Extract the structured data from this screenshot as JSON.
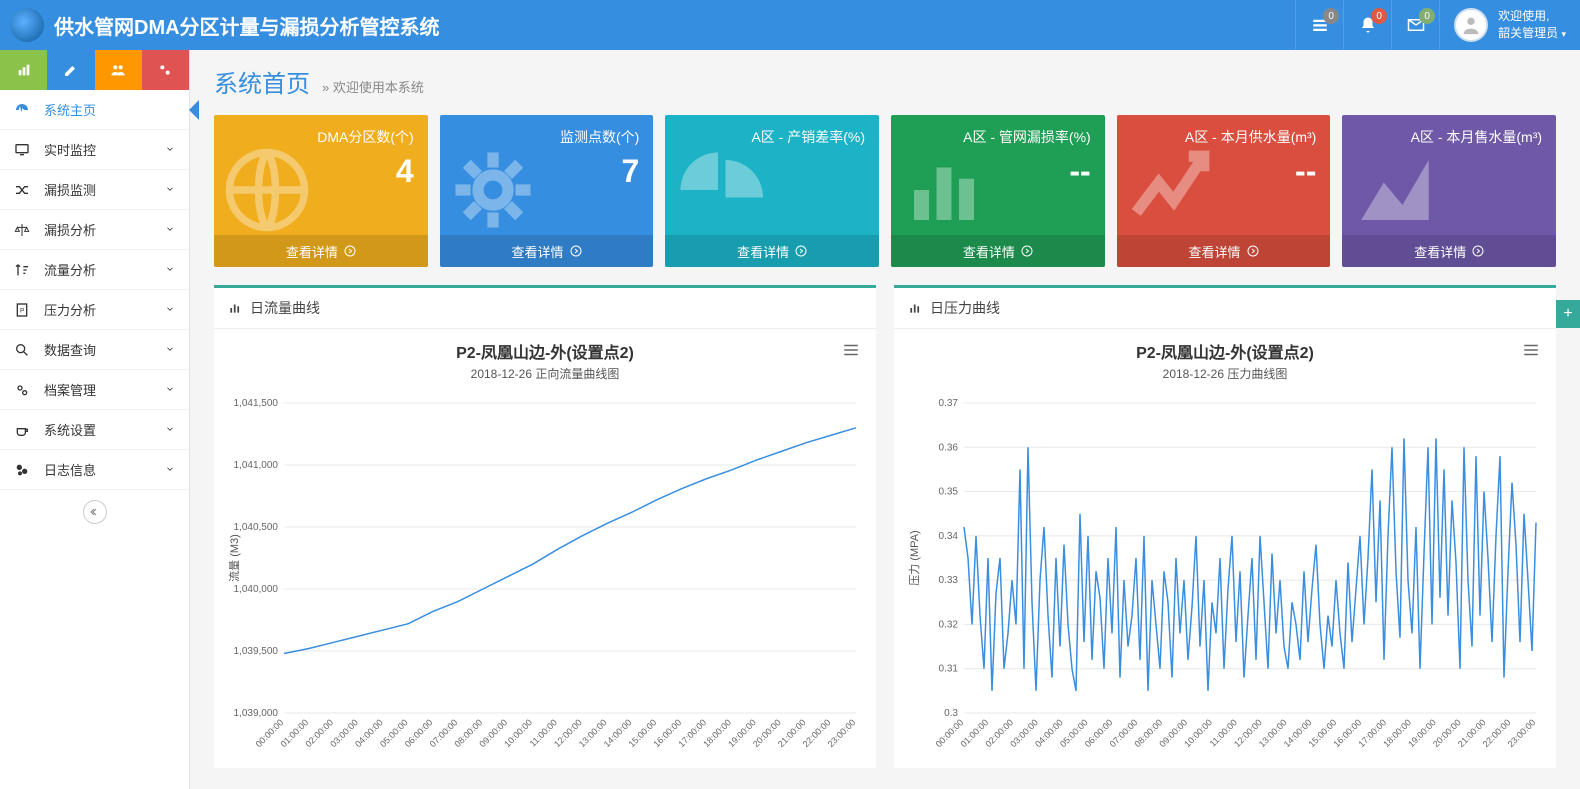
{
  "header": {
    "app_title": "供水管网DMA分区计量与漏损分析管控系统",
    "badges": {
      "list": "0",
      "bell": "0",
      "mail": "0"
    },
    "welcome_line1": "欢迎使用,",
    "welcome_line2": "韶关管理员"
  },
  "sidebar": {
    "items": [
      {
        "label": "系统主页",
        "icon": "dashboard",
        "active": true,
        "expandable": false
      },
      {
        "label": "实时监控",
        "icon": "monitor",
        "active": false,
        "expandable": true
      },
      {
        "label": "漏损监测",
        "icon": "shuffle",
        "active": false,
        "expandable": true
      },
      {
        "label": "漏损分析",
        "icon": "scale",
        "active": false,
        "expandable": true
      },
      {
        "label": "流量分析",
        "icon": "sort",
        "active": false,
        "expandable": true
      },
      {
        "label": "压力分析",
        "icon": "page",
        "active": false,
        "expandable": true
      },
      {
        "label": "数据查询",
        "icon": "search",
        "active": false,
        "expandable": true
      },
      {
        "label": "档案管理",
        "icon": "gears",
        "active": false,
        "expandable": true
      },
      {
        "label": "系统设置",
        "icon": "coffee",
        "active": false,
        "expandable": true
      },
      {
        "label": "日志信息",
        "icon": "log",
        "active": false,
        "expandable": true
      }
    ]
  },
  "page": {
    "title": "系统首页",
    "breadcrumb": "» 欢迎使用本系统"
  },
  "kpis": [
    {
      "label": "DMA分区数(个)",
      "value": "4",
      "color": "#f0ad1e",
      "icon": "globe"
    },
    {
      "label": "监测点数(个)",
      "value": "7",
      "color": "#368ee0",
      "icon": "gear"
    },
    {
      "label": "A区 - 产销差率(%)",
      "value": "",
      "color": "#1bb3c5",
      "icon": "pie"
    },
    {
      "label": "A区 - 管网漏损率(%)",
      "value": "--",
      "color": "#1f9e55",
      "icon": "bars"
    },
    {
      "label": "A区 - 本月供水量(m³)",
      "value": "--",
      "color": "#d94e3e",
      "icon": "trend"
    },
    {
      "label": "A区 - 本月售水量(m³)",
      "value": "",
      "color": "#6f58a8",
      "icon": "area"
    }
  ],
  "kpi_footer_label": "查看详情",
  "charts": {
    "flow": {
      "panel_label": "日流量曲线",
      "title": "P2-凤凰山边-外(设置点2)",
      "subtitle": "2018-12-26 正向流量曲线图",
      "y_label": "流量 (M3)",
      "ylim": [
        1039000,
        1041500
      ],
      "ytick_step": 500,
      "yticks_text": [
        "1,039,000",
        "1,039,500",
        "1,040,000",
        "1,040,500",
        "1,041,000",
        "1,041,500"
      ],
      "xticks": [
        "00:00:00",
        "01:00:00",
        "02:00:00",
        "03:00:00",
        "04:00:00",
        "05:00:00",
        "06:00:00",
        "07:00:00",
        "08:00:00",
        "09:00:00",
        "10:00:00",
        "11:00:00",
        "12:00:00",
        "13:00:00",
        "14:00:00",
        "15:00:00",
        "16:00:00",
        "17:00:00",
        "18:00:00",
        "19:00:00",
        "20:00:00",
        "21:00:00",
        "22:00:00",
        "23:00:00"
      ],
      "values": [
        1039480,
        1039520,
        1039570,
        1039620,
        1039670,
        1039720,
        1039820,
        1039900,
        1040000,
        1040100,
        1040200,
        1040320,
        1040430,
        1040530,
        1040620,
        1040720,
        1040810,
        1040890,
        1040960,
        1041040,
        1041110,
        1041180,
        1041240,
        1041300
      ],
      "line_color": "#3a8ee0",
      "grid_color": "#e8e8e8",
      "bg_color": "#ffffff"
    },
    "pressure": {
      "panel_label": "日压力曲线",
      "title": "P2-凤凰山边-外(设置点2)",
      "subtitle": "2018-12-26 压力曲线图",
      "y_label": "压力 (MPA)",
      "ylim": [
        0.3,
        0.37
      ],
      "ytick_step": 0.01,
      "yticks_text": [
        "0.3",
        "0.31",
        "0.32",
        "0.33",
        "0.34",
        "0.35",
        "0.36",
        "0.37"
      ],
      "xticks": [
        "00:00:00",
        "01:00:00",
        "02:00:00",
        "03:00:00",
        "04:00:00",
        "05:00:00",
        "06:00:00",
        "07:00:00",
        "08:00:00",
        "09:00:00",
        "10:00:00",
        "11:00:00",
        "12:00:00",
        "13:00:00",
        "14:00:00",
        "15:00:00",
        "16:00:00",
        "17:00:00",
        "18:00:00",
        "19:00:00",
        "20:00:00",
        "21:00:00",
        "22:00:00",
        "23:00:00"
      ],
      "values": [
        0.342,
        0.335,
        0.32,
        0.34,
        0.322,
        0.31,
        0.335,
        0.305,
        0.327,
        0.335,
        0.31,
        0.318,
        0.33,
        0.32,
        0.355,
        0.31,
        0.36,
        0.325,
        0.305,
        0.33,
        0.342,
        0.322,
        0.308,
        0.335,
        0.315,
        0.338,
        0.32,
        0.31,
        0.305,
        0.345,
        0.316,
        0.34,
        0.312,
        0.332,
        0.326,
        0.31,
        0.335,
        0.318,
        0.342,
        0.308,
        0.33,
        0.315,
        0.322,
        0.335,
        0.312,
        0.34,
        0.305,
        0.33,
        0.32,
        0.31,
        0.332,
        0.325,
        0.308,
        0.335,
        0.318,
        0.33,
        0.312,
        0.324,
        0.34,
        0.315,
        0.33,
        0.305,
        0.325,
        0.318,
        0.335,
        0.31,
        0.328,
        0.34,
        0.316,
        0.332,
        0.308,
        0.322,
        0.335,
        0.312,
        0.34,
        0.325,
        0.31,
        0.336,
        0.318,
        0.33,
        0.315,
        0.31,
        0.325,
        0.32,
        0.312,
        0.332,
        0.316,
        0.328,
        0.338,
        0.32,
        0.31,
        0.322,
        0.315,
        0.33,
        0.318,
        0.31,
        0.334,
        0.316,
        0.328,
        0.34,
        0.32,
        0.335,
        0.355,
        0.325,
        0.348,
        0.312,
        0.34,
        0.36,
        0.332,
        0.317,
        0.362,
        0.33,
        0.318,
        0.342,
        0.31,
        0.336,
        0.36,
        0.32,
        0.362,
        0.326,
        0.355,
        0.322,
        0.348,
        0.334,
        0.31,
        0.36,
        0.33,
        0.315,
        0.358,
        0.322,
        0.35,
        0.335,
        0.316,
        0.34,
        0.358,
        0.308,
        0.332,
        0.352,
        0.338,
        0.316,
        0.345,
        0.33,
        0.314,
        0.343
      ],
      "line_color": "#3a8ee0",
      "grid_color": "#e8e8e8",
      "bg_color": "#ffffff"
    }
  }
}
